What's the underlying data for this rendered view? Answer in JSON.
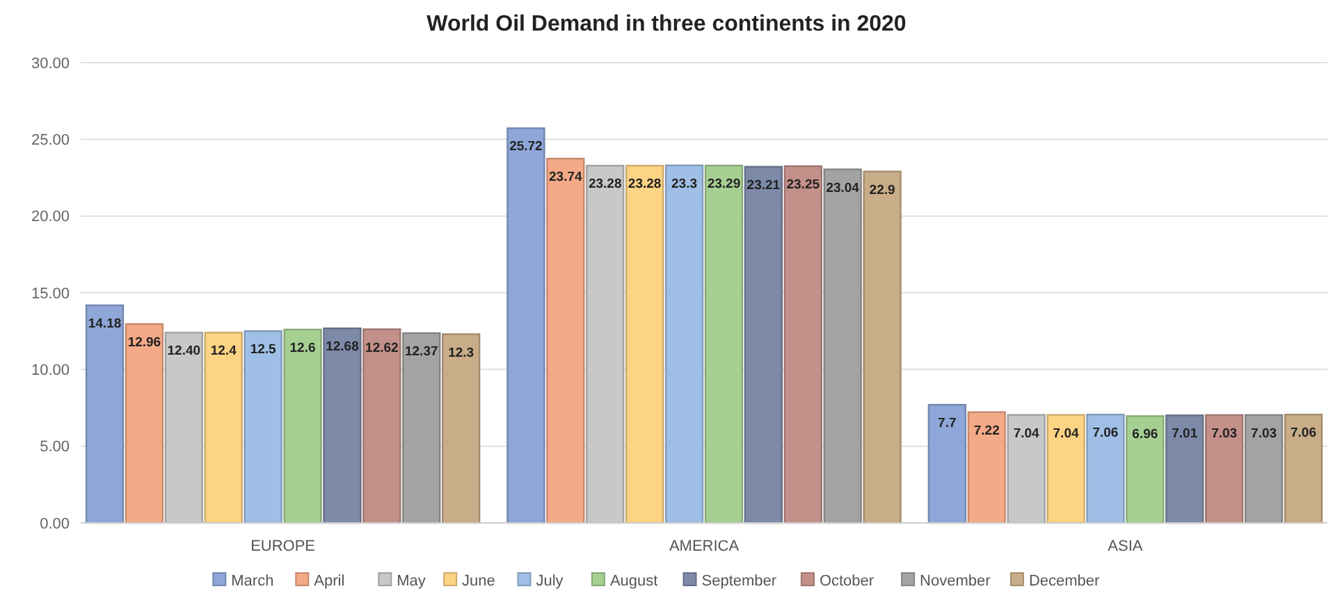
{
  "chart_data": {
    "type": "bar",
    "title": "World Oil Demand in three continents in 2020",
    "categories": [
      "EUROPE",
      "AMERICA",
      "ASIA"
    ],
    "ylim": [
      0,
      30
    ],
    "yticks": [
      {
        "value": 0,
        "label": "0.00"
      },
      {
        "value": 5,
        "label": "5.00"
      },
      {
        "value": 10,
        "label": "10.00"
      },
      {
        "value": 15,
        "label": "15.00"
      },
      {
        "value": 20,
        "label": "20.00"
      },
      {
        "value": 25,
        "label": "25.00"
      },
      {
        "value": 30,
        "label": "30.00"
      }
    ],
    "grid": "y",
    "legend": "bottom",
    "series": [
      {
        "name": "March",
        "color": "#8fa6d8",
        "values": [
          14.18,
          25.72,
          7.7
        ],
        "value_labels": [
          "14.18",
          "25.72",
          "7.7"
        ]
      },
      {
        "name": "April",
        "color": "#f4a987",
        "values": [
          12.96,
          23.74,
          7.22
        ],
        "value_labels": [
          "12.96",
          "23.74",
          "7.22"
        ]
      },
      {
        "name": "May",
        "color": "#c8c8c8",
        "values": [
          12.4,
          23.28,
          7.04
        ],
        "value_labels": [
          "12.40",
          "23.28",
          "7.04"
        ]
      },
      {
        "name": "June",
        "color": "#fdd384",
        "values": [
          12.4,
          23.28,
          7.04
        ],
        "value_labels": [
          "12.4",
          "23.28",
          "7.04"
        ]
      },
      {
        "name": "July",
        "color": "#9fbfe6",
        "values": [
          12.5,
          23.3,
          7.06
        ],
        "value_labels": [
          "12.5",
          "23.3",
          "7.06"
        ]
      },
      {
        "name": "August",
        "color": "#a6cf92",
        "values": [
          12.6,
          23.29,
          6.96
        ],
        "value_labels": [
          "12.6",
          "23.29",
          "6.96"
        ]
      },
      {
        "name": "September",
        "color": "#7d8aa8",
        "values": [
          12.68,
          23.21,
          7.01
        ],
        "value_labels": [
          "12.68",
          "23.21",
          "7.01"
        ]
      },
      {
        "name": "October",
        "color": "#c4908a",
        "values": [
          12.62,
          23.25,
          7.03
        ],
        "value_labels": [
          "12.62",
          "23.25",
          "7.03"
        ]
      },
      {
        "name": "November",
        "color": "#a3a3a3",
        "values": [
          12.37,
          23.04,
          7.03
        ],
        "value_labels": [
          "12.37",
          "23.04",
          "7.03"
        ]
      },
      {
        "name": "December",
        "color": "#c8ad88",
        "values": [
          12.3,
          22.9,
          7.06
        ],
        "value_labels": [
          "12.3",
          "22.9",
          "7.06"
        ]
      }
    ]
  }
}
